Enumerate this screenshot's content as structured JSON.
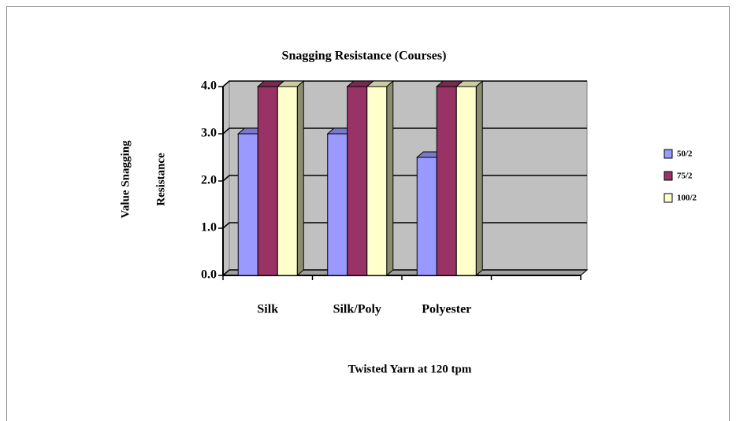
{
  "chart_data": {
    "type": "bar",
    "title": "Snagging Resistance (Courses)",
    "x_label": "Twisted Yarn at 120 tpm",
    "y_label": [
      "Value Snagging",
      "Resistance"
    ],
    "categories": [
      "Silk",
      "Silk/Poly",
      "Polyester",
      null
    ],
    "series": [
      {
        "name": "50/2",
        "color": "#9999ff",
        "values": [
          3.0,
          3.0,
          2.5,
          null
        ]
      },
      {
        "name": "75/2",
        "color": "#993366",
        "values": [
          4.0,
          4.0,
          4.0,
          null
        ]
      },
      {
        "name": "100/2",
        "color": "#ffffcc",
        "values": [
          4.0,
          4.0,
          4.0,
          null
        ]
      }
    ],
    "ylim": [
      0,
      4
    ],
    "yticks": [
      {
        "value": 0,
        "label": "0.0"
      },
      {
        "value": 1,
        "label": "1.0"
      },
      {
        "value": 2,
        "label": "2.0"
      },
      {
        "value": 3,
        "label": "3.0"
      },
      {
        "value": 4,
        "label": "4.0"
      }
    ],
    "grid": true,
    "legend": "right"
  }
}
